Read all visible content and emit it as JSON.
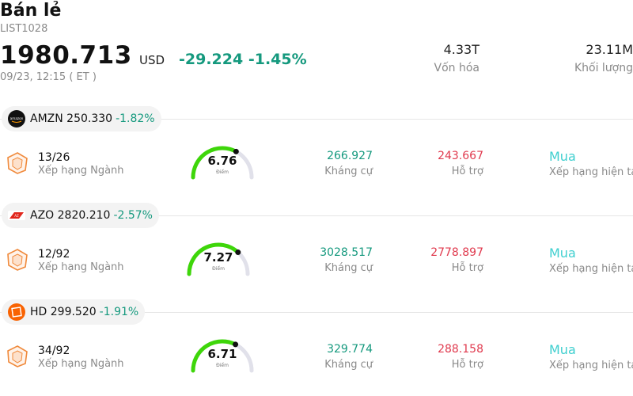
{
  "header": {
    "title": "Bán lẻ",
    "code": "LIST1028",
    "price": "1980.713",
    "currency": "USD",
    "change": "-29.224",
    "change_pct": "-1.45%",
    "timestamp": "09/23, 12:15  ( ET )",
    "market_cap": "4.33T",
    "market_cap_label": "Vốn hóa",
    "volume": "23.11M",
    "volume_label": "Khối lượng"
  },
  "colors": {
    "up_green": "#15997e",
    "down_red": "#e03a4e",
    "rating_teal": "#3fcfcf",
    "gauge_green": "#3ed60a"
  },
  "stocks": [
    {
      "symbol_price": "AMZN 250.330",
      "change_pct": "-1.82%",
      "logo": "amazon-logo",
      "rank": "13/26",
      "rank_label": "Xếp hạng Ngành",
      "score": "6.76",
      "score_value": 6.76,
      "score_label": "Điểm",
      "resistance": "266.927",
      "resistance_label": "Kháng cự",
      "support": "243.667",
      "support_label": "Hỗ trợ",
      "rating": "Mua",
      "rating_label": "Xếp hạng hiện tại"
    },
    {
      "symbol_price": "AZO 2820.210",
      "change_pct": "-2.57%",
      "logo": "autozone-logo",
      "rank": "12/92",
      "rank_label": "Xếp hạng Ngành",
      "score": "7.27",
      "score_value": 7.27,
      "score_label": "Điểm",
      "resistance": "3028.517",
      "resistance_label": "Kháng cự",
      "support": "2778.897",
      "support_label": "Hỗ trợ",
      "rating": "Mua",
      "rating_label": "Xếp hạng hiện tại"
    },
    {
      "symbol_price": "HD 299.520",
      "change_pct": "-1.91%",
      "logo": "home-depot-logo",
      "rank": "34/92",
      "rank_label": "Xếp hạng Ngành",
      "score": "6.71",
      "score_value": 6.71,
      "score_label": "Điểm",
      "resistance": "329.774",
      "resistance_label": "Kháng cự",
      "support": "288.158",
      "support_label": "Hỗ trợ",
      "rating": "Mua",
      "rating_label": "Xếp hạng hiện tại"
    }
  ]
}
